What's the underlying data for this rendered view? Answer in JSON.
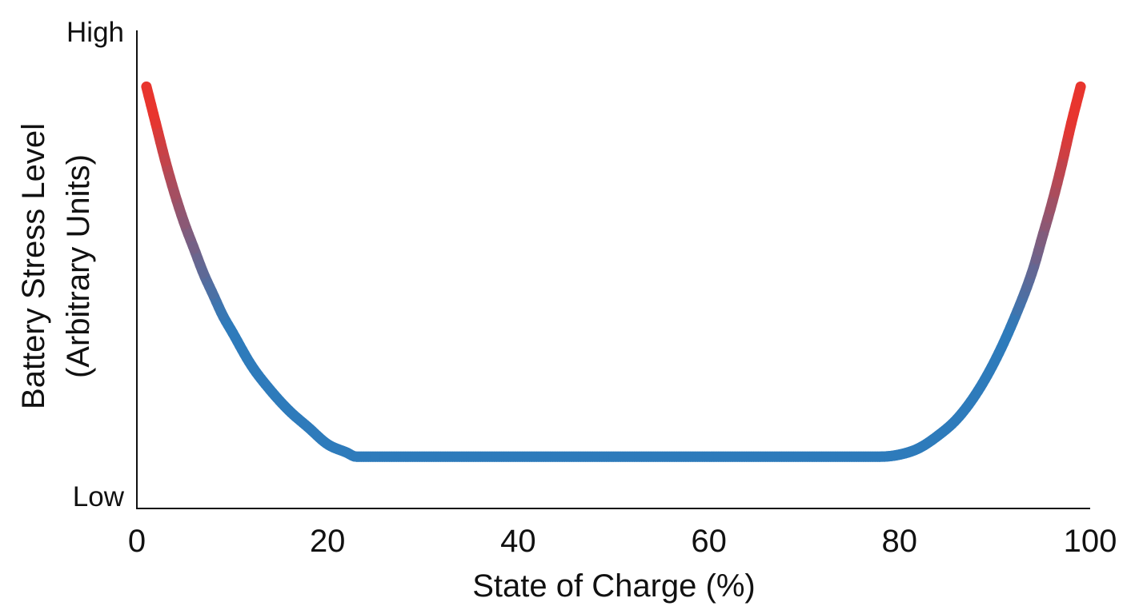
{
  "chart_data": {
    "type": "line",
    "title": "",
    "xlabel": "State of Charge (%)",
    "ylabel_lines": [
      "Battery Stress Level",
      "(Arbitrary Units)"
    ],
    "xlim": [
      0,
      100
    ],
    "ylim": [
      0,
      1
    ],
    "x_ticks": [
      0,
      20,
      40,
      60,
      80,
      100
    ],
    "y_level_labels": {
      "high": "High",
      "low": "Low"
    },
    "grid": false,
    "legend": "none",
    "colors": {
      "low_stress": "#2e7bbb",
      "high_stress": "#e8352e",
      "axis": "#111111"
    },
    "series": [
      {
        "x": [
          1,
          2,
          3,
          4,
          5,
          6,
          7,
          8,
          9,
          10,
          12,
          14,
          16,
          18,
          20,
          22,
          23,
          25,
          30,
          40,
          50,
          60,
          70,
          78,
          80,
          82,
          84,
          86,
          88,
          90,
          92,
          94,
          95,
          96,
          97,
          98,
          99
        ],
        "y": [
          0.93,
          0.84,
          0.75,
          0.67,
          0.6,
          0.54,
          0.48,
          0.43,
          0.38,
          0.34,
          0.26,
          0.2,
          0.15,
          0.11,
          0.07,
          0.05,
          0.04,
          0.04,
          0.04,
          0.04,
          0.04,
          0.04,
          0.04,
          0.04,
          0.045,
          0.06,
          0.09,
          0.13,
          0.19,
          0.27,
          0.37,
          0.49,
          0.57,
          0.65,
          0.74,
          0.84,
          0.93
        ]
      }
    ]
  }
}
